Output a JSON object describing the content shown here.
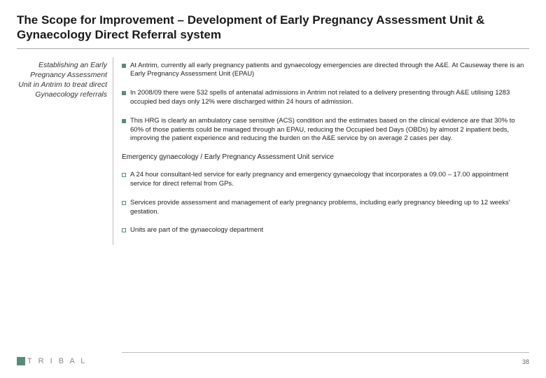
{
  "title": "The Scope for Improvement – Development of Early Pregnancy Assessment Unit & Gynaecology Direct Referral system",
  "sidebar": {
    "text": "Establishing an Early Pregnancy Assessment Unit in Antrim to treat direct Gynaecology referrals"
  },
  "bullets_top": [
    "At Antrim, currently all early pregnancy patients and gynaecology emergencies are directed through the A&E. At Causeway there is an Early Pregnancy Assessment Unit (EPAU)",
    "In 2008/09 there were 532 spells of antenatal admissions in Antrim not related to a delivery presenting through A&E utilising 1283 occupied bed days only 12% were discharged within 24 hours of admission.",
    "This HRG is clearly an ambulatory case sensitive (ACS) condition and the estimates based on the clinical evidence are that 30% to 60% of those patients could be managed through an EPAU, reducing the Occupied bed Days (OBDs) by almost 2 inpatient beds, improving the patient experience and reducing the burden on the A&E service by on average 2 cases per day."
  ],
  "subheading": "Emergency gynaecology / Early Pregnancy Assessment Unit service",
  "bullets_bottom": [
    "A 24 hour consultant-led service for early pregnancy and emergency gynaecology that incorporates a 09.00 – 17.00 appointment service for direct referral from GPs.",
    "Services provide assessment and management of early pregnancy problems, including early pregnancy bleeding up to 12 weeks' gestation.",
    "Units are part of the gynaecology department"
  ],
  "footer": {
    "logo_text": "T R I B A L",
    "page": "38"
  },
  "colors": {
    "accent": "#5b8a7c",
    "text": "#222222",
    "muted": "#888888",
    "rule": "#bbbbbb"
  }
}
